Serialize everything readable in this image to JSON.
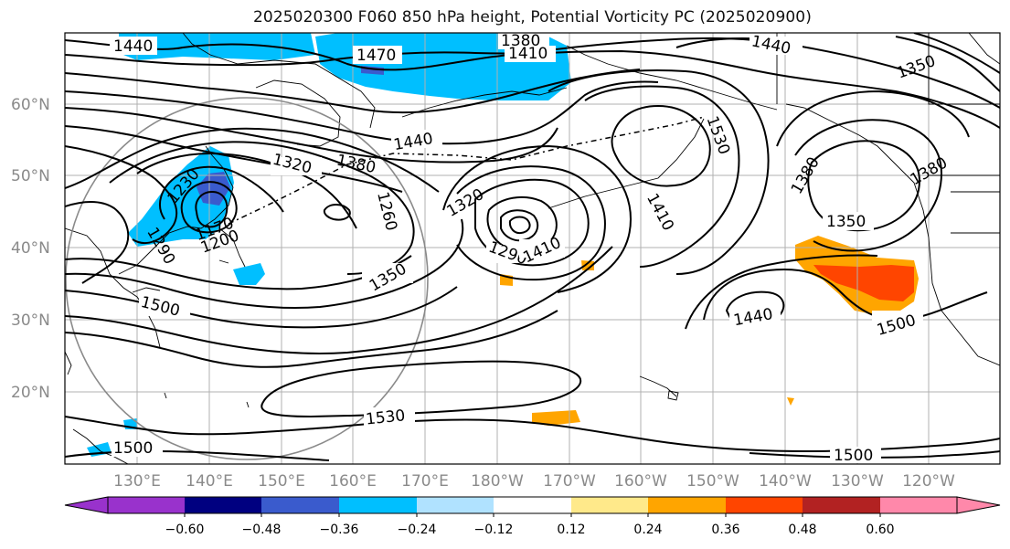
{
  "title": "2025020300 F060 850 hPa height, Potential Vorticity PC (2025020900)",
  "lat_labels": [
    "60°N",
    "50°N",
    "40°N",
    "30°N",
    "20°N"
  ],
  "lon_labels": [
    "130°E",
    "140°E",
    "150°E",
    "160°E",
    "170°E",
    "180°W",
    "170°W",
    "160°W",
    "150°W",
    "140°W",
    "130°W",
    "120°W"
  ],
  "contour_labels": [
    "1440",
    "1470",
    "1380",
    "1410",
    "1440",
    "1350",
    "1380",
    "1440",
    "1530",
    "1320",
    "1380",
    "1230",
    "1260",
    "1170",
    "1200",
    "1290",
    "1350",
    "1320",
    "1290",
    "1410",
    "1500",
    "1410",
    "1380",
    "1350",
    "1500",
    "1440",
    "1530",
    "1500",
    "1500"
  ],
  "colorbar": {
    "ticks": [
      "−0.60",
      "−0.48",
      "−0.36",
      "−0.24",
      "−0.12",
      "0.12",
      "0.24",
      "0.36",
      "0.48",
      "0.60"
    ],
    "colors": [
      "#9932cc",
      "#000080",
      "#3a5bcd",
      "#00bfff",
      "#b0e2ff",
      "#ffffff",
      "#ffe98a",
      "#ffa500",
      "#ff4500",
      "#b22222",
      "#ff88aa"
    ]
  },
  "colors": {
    "negative_pv": "#00bfff",
    "positive_pv": "#ffa500",
    "strong_positive_pv": "#ff4500"
  }
}
